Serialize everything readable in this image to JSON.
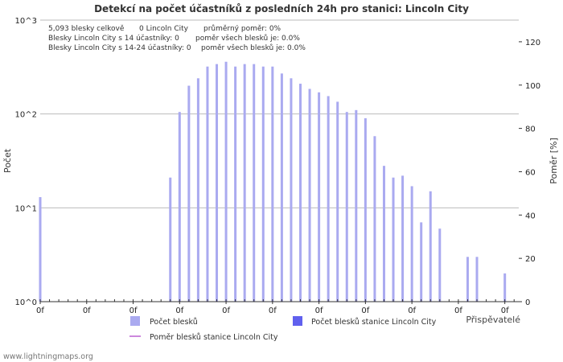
{
  "chart_data": {
    "type": "bar",
    "title": "Detekcí na počet účastníků z posledních 24h pro stanici: Lincoln City",
    "ylabel": "Počet",
    "y2label": "Poměr [%]",
    "y_scale": "log",
    "y_ticks": [
      {
        "value": 1,
        "label": "10^0"
      },
      {
        "value": 10,
        "label": "10^1"
      },
      {
        "value": 100,
        "label": "10^2"
      },
      {
        "value": 1000,
        "label": "10^3"
      }
    ],
    "ylim": [
      1,
      1000
    ],
    "y2lim": [
      0,
      130
    ],
    "y2_ticks": [
      0,
      20,
      40,
      60,
      80,
      100,
      120
    ],
    "x_tick_labels": [
      "0f",
      "0f",
      "0f",
      "0f",
      "0f",
      "0f",
      "0f",
      "0f",
      "0f",
      "0f",
      "0f"
    ],
    "x_tick_positions": [
      0,
      10,
      20,
      30,
      40,
      50,
      60,
      70,
      80,
      90,
      100
    ],
    "x_range": [
      0,
      103
    ],
    "series": [
      {
        "name": "Počet blesků",
        "color": "#aaaaf0",
        "values": [
          13,
          1,
          1,
          1,
          1,
          1,
          1,
          1,
          1,
          1,
          1,
          1,
          1,
          1,
          21,
          105,
          200,
          240,
          320,
          340,
          360,
          320,
          340,
          340,
          320,
          320,
          270,
          240,
          210,
          185,
          170,
          155,
          135,
          105,
          110,
          90,
          58,
          28,
          21,
          22,
          17,
          7,
          15,
          6,
          1,
          1,
          3,
          3,
          1,
          1,
          2,
          1,
          1,
          1
        ]
      },
      {
        "name": "Počet blesků stanice Lincoln City",
        "color": "#6060ee",
        "values": []
      },
      {
        "name": "Poměr blesků stanice Lincoln City",
        "color": "#cc88dd",
        "type": "line",
        "values": []
      }
    ]
  },
  "stats": {
    "line1_a": "5,093 blesky celkově",
    "line1_b": "0 Lincoln City",
    "line1_c": "průměrný poměr: 0%",
    "line2_a": "Blesky Lincoln City s 14 účastníky: 0",
    "line2_b": "poměr všech blesků je: 0.0%",
    "line3_a": "Blesky Lincoln City s 14-24 účastníky: 0",
    "line3_b": "poměr všech blesků je: 0.0%"
  },
  "contributors_label": "Přispěvatelé",
  "footer": "www.lightningmaps.org",
  "colors": {
    "grid": "#bbbbbb",
    "axis": "#333333",
    "bar": "#aaaaf0",
    "bar_station": "#6060ee",
    "ratio_line": "#cc88dd"
  }
}
